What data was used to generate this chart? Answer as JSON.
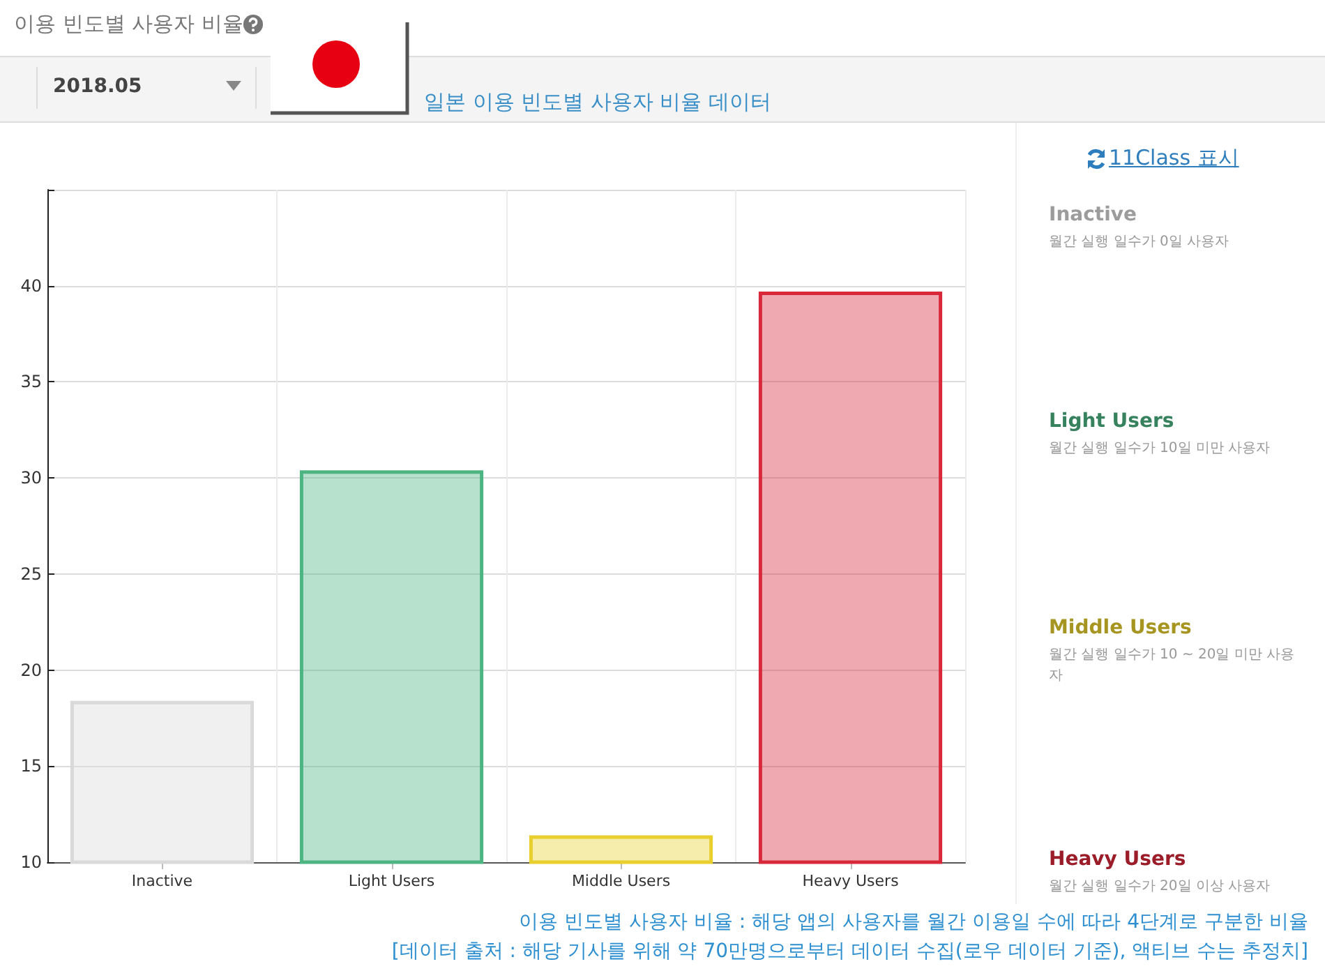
{
  "chart_data": {
    "type": "bar",
    "title": "이용 빈도별 사용자 비율",
    "categories": [
      "Inactive",
      "Light Users",
      "Middle Users",
      "Heavy Users"
    ],
    "values": [
      18.4,
      30.4,
      11.4,
      39.7
    ],
    "colors": [
      "#d9d9d9",
      "#4cb582",
      "#e8cf2e",
      "#d8283a"
    ],
    "ylim": [
      10,
      45
    ],
    "yticks": [
      10,
      15,
      20,
      25,
      30,
      35,
      40,
      {
        "value": 45,
        "label": null
      }
    ],
    "grid": true,
    "annotations": [
      "2018.05",
      "일본 이용 빈도별 사용자 비율 데이터",
      "11Class 표시",
      "월간 실행 일수가 0일 사용자",
      "월간 실행 일수가 10일 미만 사용자",
      "월간 실행 일수가 10 ~ 20일 미만 사용자",
      "월간 실행 일수가 20일 이상 사용자",
      "이용 빈도별 사용자 비율 : 해당 앱의 사용자를 월간 이용일 수에 따라 4단계로 구분한 비율",
      "[데이터 출처 : 해당 기사를 위해 약 70만명으로부터 데이터 수집(로우 데이터 기준), 액티브 수는 추정치]"
    ]
  }
}
